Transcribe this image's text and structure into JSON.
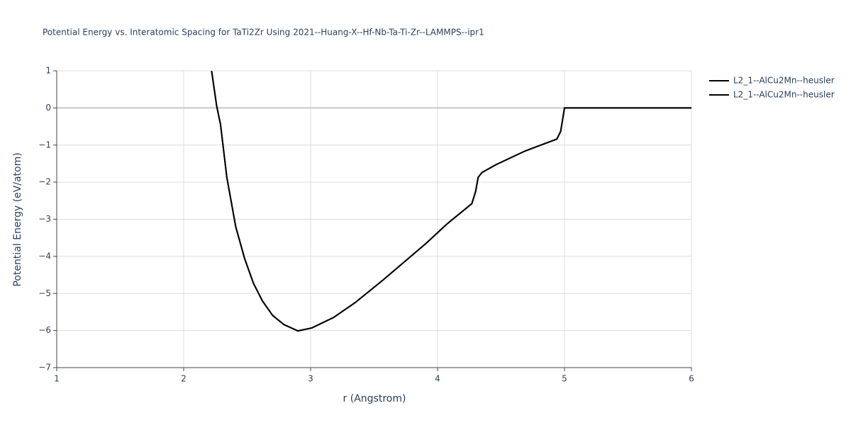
{
  "chart_data": {
    "type": "line",
    "title": "Potential Energy vs. Interatomic Spacing for TaTi2Zr Using 2021--Huang-X--Hf-Nb-Ta-Ti-Zr--LAMMPS--ipr1",
    "x_label": "r (Angstrom)",
    "y_label": "Potential Energy (eV/atom)",
    "x": [
      2.22,
      2.26,
      2.29,
      2.34,
      2.41,
      2.48,
      2.55,
      2.62,
      2.7,
      2.79,
      2.9,
      3.01,
      3.18,
      3.35,
      3.57,
      3.91,
      4.07,
      4.27,
      4.3,
      4.32,
      4.35,
      4.46,
      4.69,
      4.94,
      4.97,
      5.0,
      6.0
    ],
    "series": [
      {
        "name": "L2_1--AlCu2Mn--heusler",
        "color": "#000000",
        "values": [
          1.0,
          0.05,
          -0.44,
          -1.87,
          -3.2,
          -4.06,
          -4.73,
          -5.2,
          -5.59,
          -5.84,
          -6.01,
          -5.93,
          -5.65,
          -5.25,
          -4.64,
          -3.65,
          -3.14,
          -2.58,
          -2.25,
          -1.87,
          -1.74,
          -1.53,
          -1.16,
          -0.84,
          -0.63,
          0.0,
          0.0
        ]
      },
      {
        "name": "L2_1--AlCu2Mn--heusler",
        "color": "#000000",
        "values": [
          1.0,
          0.05,
          -0.44,
          -1.87,
          -3.2,
          -4.06,
          -4.73,
          -5.2,
          -5.59,
          -5.84,
          -6.01,
          -5.93,
          -5.65,
          -5.25,
          -4.64,
          -3.65,
          -3.14,
          -2.58,
          -2.25,
          -1.87,
          -1.74,
          -1.53,
          -1.16,
          -0.84,
          -0.63,
          0.0,
          0.0
        ]
      }
    ],
    "xlim": [
      1,
      6
    ],
    "xticks": [
      1,
      2,
      3,
      4,
      5,
      6
    ],
    "ylim": [
      -7,
      1
    ],
    "yticks": [
      {
        "value": -7,
        "label": "−7"
      },
      {
        "value": -6,
        "label": "−6"
      },
      {
        "value": -5,
        "label": "−5"
      },
      {
        "value": -4,
        "label": "−4"
      },
      {
        "value": -3,
        "label": "−3"
      },
      {
        "value": -2,
        "label": "−2"
      },
      {
        "value": -1,
        "label": "−1"
      },
      0,
      1
    ],
    "grid": true,
    "legend": "top-right"
  }
}
